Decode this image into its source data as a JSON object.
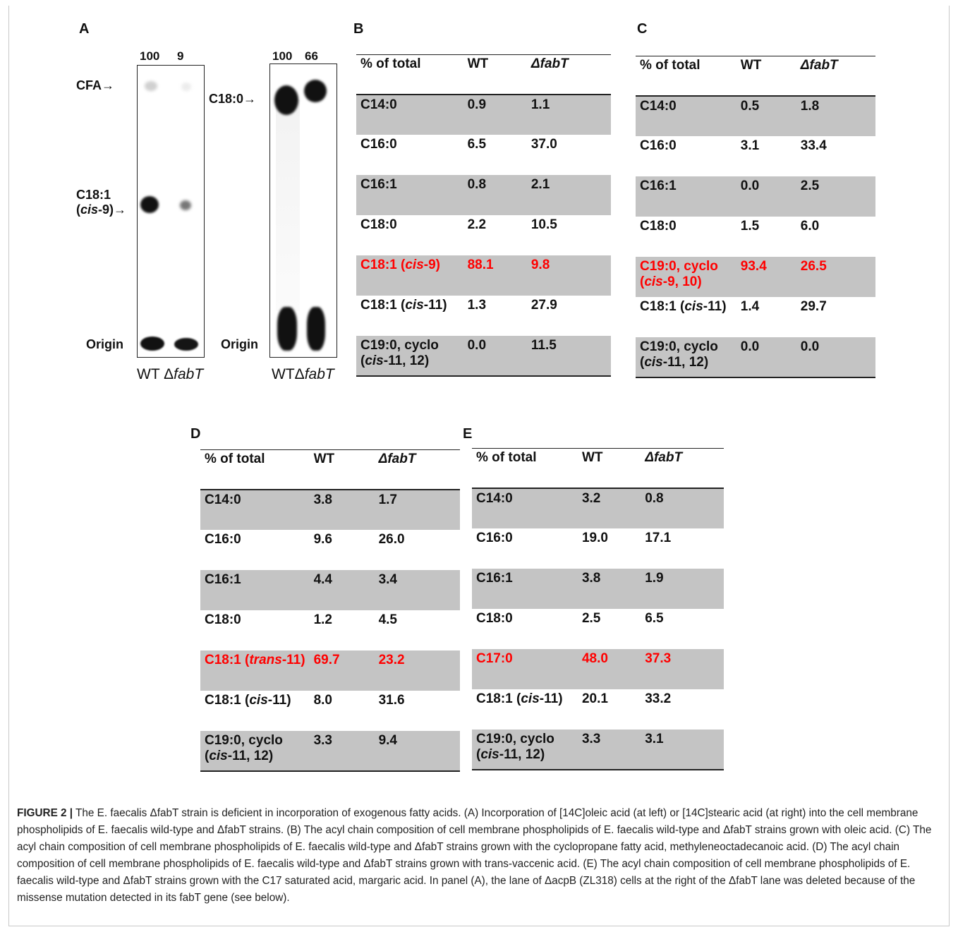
{
  "panel_labels": {
    "a": "A",
    "b": "B",
    "c": "C",
    "d": "D",
    "e": "E"
  },
  "gel_left": {
    "numbers": [
      "100",
      "9"
    ],
    "markers": {
      "cfa": "CFA",
      "c181_line1": "C18:1",
      "c181_line2_pre": "(",
      "c181_line2_ital": "cis",
      "c181_line2_post": "-9)",
      "origin": "Origin"
    },
    "lanes": {
      "wt": "WT",
      "mut_prefix": "Δ",
      "mut_ital": "fabT"
    }
  },
  "gel_right": {
    "numbers": [
      "100",
      "66"
    ],
    "markers": {
      "c180": "C18:0",
      "origin": "Origin"
    },
    "lanes": {
      "wt": "WT",
      "mut_prefix": "Δ",
      "mut_ital": "fabT"
    }
  },
  "tables": {
    "b": {
      "headers": [
        "% of total",
        "WT",
        "ΔfabT"
      ],
      "rows": [
        {
          "label": "C14:0",
          "wt": "0.9",
          "mut": "1.1"
        },
        {
          "label": "C16:0",
          "wt": "6.5",
          "mut": "37.0"
        },
        {
          "label": "C16:1",
          "wt": "0.8",
          "mut": "2.1"
        },
        {
          "label": "C18:0",
          "wt": "2.2",
          "mut": "10.5"
        },
        {
          "label": "C18:1 (cis-9)",
          "wt": "88.1",
          "mut": "9.8"
        },
        {
          "label": "C18:1 (cis-11)",
          "wt": "1.3",
          "mut": "27.9"
        },
        {
          "label": "C19:0, cyclo\n (cis-11, 12)",
          "wt": "0.0",
          "mut": "11.5"
        }
      ]
    },
    "c": {
      "headers": [
        "% of total",
        "WT",
        "ΔfabT"
      ],
      "rows": [
        {
          "label": "C14:0",
          "wt": "0.5",
          "mut": "1.8"
        },
        {
          "label": "C16:0",
          "wt": "3.1",
          "mut": "33.4"
        },
        {
          "label": "C16:1",
          "wt": "0.0",
          "mut": "2.5"
        },
        {
          "label": "C18:0",
          "wt": "1.5",
          "mut": "6.0"
        },
        {
          "label": "C19:0, cyclo\n (cis-9, 10)",
          "wt": "93.4",
          "mut": "26.5"
        },
        {
          "label": "C18:1 (cis-11)",
          "wt": "1.4",
          "mut": "29.7"
        },
        {
          "label": "C19:0, cyclo\n(cis-11, 12)",
          "wt": "0.0",
          "mut": "0.0"
        }
      ]
    },
    "d": {
      "headers": [
        "% of total",
        "WT",
        "ΔfabT"
      ],
      "rows": [
        {
          "label": "C14:0",
          "wt": "3.8",
          "mut": "1.7"
        },
        {
          "label": "C16:0",
          "wt": "9.6",
          "mut": "26.0"
        },
        {
          "label": "C16:1",
          "wt": "4.4",
          "mut": "3.4"
        },
        {
          "label": "C18:0",
          "wt": "1.2",
          "mut": "4.5"
        },
        {
          "label": "C18:1  (trans-11)",
          "wt": "69.7",
          "mut": "23.2"
        },
        {
          "label": "C18:1 (cis-11)",
          "wt": "8.0",
          "mut": "31.6"
        },
        {
          "label": "C19:0, cyclo\n (cis-11, 12)",
          "wt": "3.3",
          "mut": "9.4"
        }
      ]
    },
    "e": {
      "headers": [
        "% of total",
        "WT",
        "ΔfabT"
      ],
      "rows": [
        {
          "label": "C14:0",
          "wt": "3.2",
          "mut": "0.8"
        },
        {
          "label": "C16:0",
          "wt": "19.0",
          "mut": "17.1"
        },
        {
          "label": "C16:1",
          "wt": "3.8",
          "mut": "1.9"
        },
        {
          "label": "C18:0",
          "wt": "2.5",
          "mut": "6.5"
        },
        {
          "label": "C17:0",
          "wt": "48.0",
          "mut": "37.3"
        },
        {
          "label": "C18:1 (cis-11)",
          "wt": "20.1",
          "mut": "33.2"
        },
        {
          "label": "C19:0, cyclo\n (cis-11, 12)",
          "wt": "3.3",
          "mut": "3.1"
        }
      ]
    }
  },
  "caption": {
    "figure_label": "FIGURE 2 |",
    "text": " The E. faecalis ΔfabT strain is deficient in incorporation of exogenous fatty acids. (A) Incorporation of [14C]oleic acid (at left) or [14C]stearic acid (at right) into the cell membrane phospholipids of E. faecalis wild-type and ΔfabT strains. (B) The acyl chain composition of cell membrane phospholipids of E. faecalis wild-type and ΔfabT strains grown with oleic acid. (C) The acyl chain composition of cell membrane phospholipids of E. faecalis wild-type and ΔfabT strains grown with the cyclopropane fatty acid, methyleneoctadecanoic acid. (D) The acyl chain composition of cell membrane phospholipids of E. faecalis wild-type and ΔfabT strains grown with trans-vaccenic acid. (E) The acyl chain composition of cell membrane phospholipids of E. faecalis wild-type and ΔfabT strains grown with the C17 saturated acid, margaric acid. In panel (A), the lane of ΔacpB (ZL318) cells at the right of the ΔfabT lane was deleted because of the missense mutation detected in its fabT gene (see below)."
  },
  "colors": {
    "highlight": "#ff0000",
    "shade": "#c4c4c4"
  }
}
